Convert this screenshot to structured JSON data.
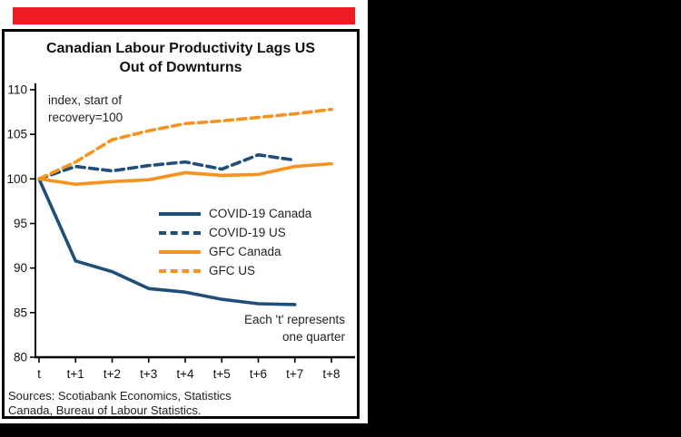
{
  "page": {
    "background_color": "#000000"
  },
  "card": {
    "accent_bar_color": "#ed1c24"
  },
  "chart": {
    "title_line1": "Canadian Labour Productivity Lags US",
    "title_line2": "Out of Downturns",
    "annotation_top_line1": "index, start of",
    "annotation_top_line2": "recovery=100",
    "annotation_bottom_line1": "Each 't' represents",
    "annotation_bottom_line2": "one quarter",
    "sources_line1": "Sources: Scotiabank Economics, Statistics",
    "sources_line2": "Canada, Bureau of Labour Statistics."
  },
  "chart_data": {
    "type": "line",
    "title": "Canadian Labour Productivity Lags US Out of Downturns",
    "xlabel": "",
    "ylabel": "index, start of recovery=100",
    "categories": [
      "t",
      "t+1",
      "t+2",
      "t+3",
      "t+4",
      "t+5",
      "t+6",
      "t+7",
      "t+8"
    ],
    "ylim": [
      80,
      110
    ],
    "yticks": [
      80,
      85,
      90,
      95,
      100,
      105,
      110
    ],
    "grid": false,
    "legend_position": "center",
    "series": [
      {
        "name": "COVID-19 Canada",
        "color": "#1f4e79",
        "dash": false,
        "values": [
          100,
          90.8,
          89.6,
          87.7,
          87.3,
          86.5,
          86.0,
          85.9
        ]
      },
      {
        "name": "COVID-19 US",
        "color": "#1f4e79",
        "dash": true,
        "values": [
          100,
          101.4,
          100.9,
          101.5,
          101.9,
          101.1,
          102.7,
          102.1
        ]
      },
      {
        "name": "GFC Canada",
        "color": "#f6921e",
        "dash": false,
        "values": [
          100,
          99.4,
          99.7,
          99.9,
          100.7,
          100.4,
          100.5,
          101.4,
          101.7
        ]
      },
      {
        "name": "GFC US",
        "color": "#f6921e",
        "dash": true,
        "values": [
          100,
          101.9,
          104.4,
          105.4,
          106.2,
          106.5,
          106.9,
          107.3,
          107.8
        ]
      }
    ]
  }
}
